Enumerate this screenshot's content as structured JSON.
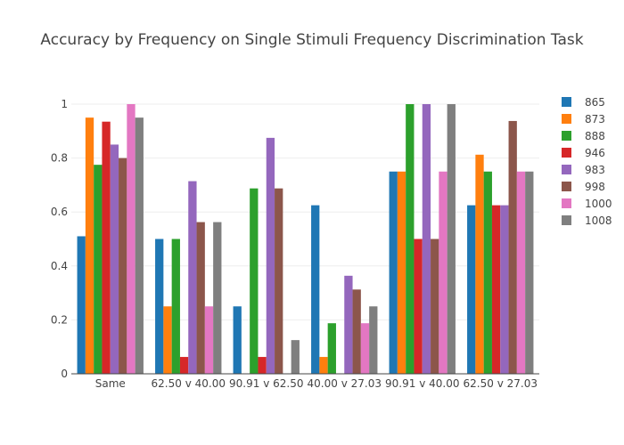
{
  "chart_data": {
    "type": "bar",
    "title": "Accuracy by Frequency on Single Stimuli Frequency Discrimination Task",
    "xlabel": "",
    "ylabel": "",
    "ylim": [
      0,
      1
    ],
    "yticks": [
      "0",
      "0.2",
      "0.4",
      "0.6",
      "0.8",
      "1"
    ],
    "categories": [
      "Same",
      "62.50 v 40.00",
      "90.91 v 62.50",
      "40.00 v 27.03",
      "90.91 v 40.00",
      "62.50 v 27.03"
    ],
    "legend_position": "top-right",
    "grid": true,
    "series": [
      {
        "name": "865",
        "color": "#1f77b4",
        "values": [
          0.51,
          0.5,
          0.25,
          0.625,
          0.75,
          0.625
        ]
      },
      {
        "name": "873",
        "color": "#ff7f0e",
        "values": [
          0.95,
          0.25,
          0.0,
          0.0625,
          0.75,
          0.8125
        ]
      },
      {
        "name": "888",
        "color": "#2ca02c",
        "values": [
          0.775,
          0.5,
          0.6875,
          0.1875,
          1.0,
          0.75
        ]
      },
      {
        "name": "946",
        "color": "#d62728",
        "values": [
          0.935,
          0.0625,
          0.0625,
          0.0,
          0.5,
          0.625
        ]
      },
      {
        "name": "983",
        "color": "#9467bd",
        "values": [
          0.85,
          0.7143,
          0.875,
          0.3636,
          1.0,
          0.625
        ]
      },
      {
        "name": "998",
        "color": "#8c564b",
        "values": [
          0.8,
          0.5625,
          0.6875,
          0.3125,
          0.5,
          0.9375
        ]
      },
      {
        "name": "1000",
        "color": "#e377c2",
        "values": [
          1.0,
          0.25,
          0.0,
          0.1875,
          0.75,
          0.75
        ]
      },
      {
        "name": "1008",
        "color": "#7f7f7f",
        "values": [
          0.95,
          0.5625,
          0.125,
          0.25,
          1.0,
          0.75
        ]
      }
    ]
  }
}
